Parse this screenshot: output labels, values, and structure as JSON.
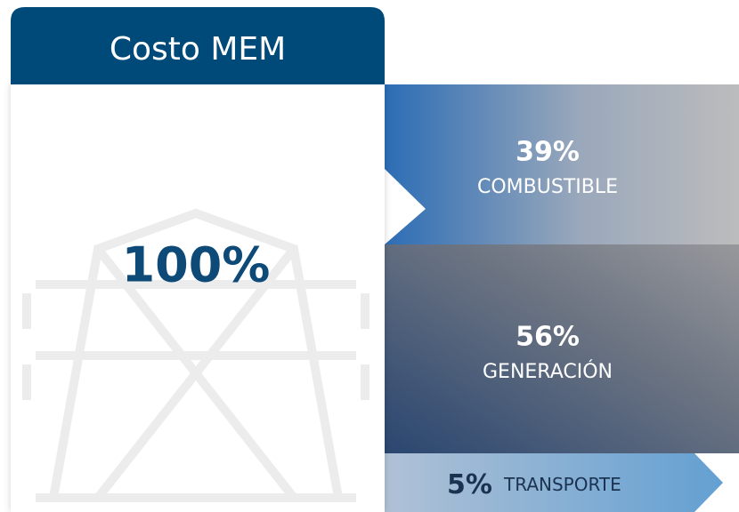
{
  "header": {
    "title": "Costo MEM"
  },
  "total": "100%",
  "segments": [
    {
      "value": "39%",
      "label": "COMBUSTIBLE"
    },
    {
      "value": "56%",
      "label": "GENERACIÓN"
    },
    {
      "value": "5%",
      "label": "TRANSPORTE"
    }
  ]
}
